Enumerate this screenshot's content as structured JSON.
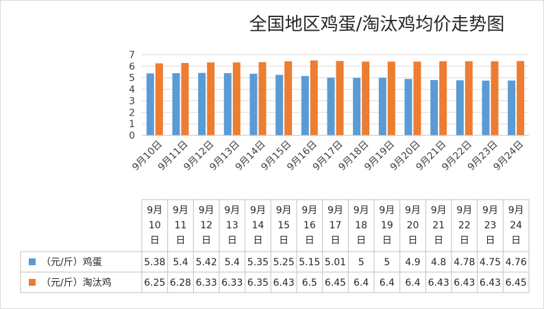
{
  "chart_data": {
    "type": "bar",
    "title": "全国地区鸡蛋/淘汰鸡均价走势图",
    "categories": [
      "9月10日",
      "9月11日",
      "9月12日",
      "9月13日",
      "9月14日",
      "9月15日",
      "9月16日",
      "9月17日",
      "9月18日",
      "9月19日",
      "9月20日",
      "9月21日",
      "9月22日",
      "9月23日",
      "9月24日"
    ],
    "series": [
      {
        "name": "（元/斤）鸡蛋",
        "color": "#5b9bd5",
        "values": [
          5.38,
          5.4,
          5.42,
          5.4,
          5.35,
          5.25,
          5.15,
          5.01,
          5,
          5,
          4.9,
          4.8,
          4.78,
          4.75,
          4.76
        ],
        "labels": [
          "5.38",
          "5.4",
          "5.42",
          "5.4",
          "5.35",
          "5.25",
          "5.15",
          "5.01",
          "5",
          "5",
          "4.9",
          "4.8",
          "4.78",
          "4.75",
          "4.76"
        ]
      },
      {
        "name": "（元/斤）淘汰鸡",
        "color": "#ed7d31",
        "values": [
          6.25,
          6.28,
          6.33,
          6.33,
          6.35,
          6.43,
          6.5,
          6.45,
          6.4,
          6.4,
          6.4,
          6.43,
          6.43,
          6.43,
          6.45
        ],
        "labels": [
          "6.25",
          "6.28",
          "6.33",
          "6.33",
          "6.35",
          "6.43",
          "6.5",
          "6.45",
          "6.4",
          "6.4",
          "6.4",
          "6.43",
          "6.43",
          "6.43",
          "6.45"
        ]
      }
    ],
    "ylim": [
      0,
      7
    ],
    "yticks": [
      "0",
      "1",
      "2",
      "3",
      "4",
      "5",
      "6",
      "7"
    ],
    "grid": true,
    "legend": "data-table"
  }
}
